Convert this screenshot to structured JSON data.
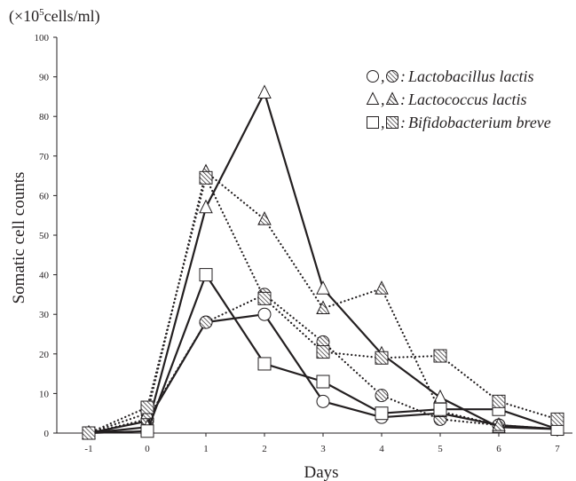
{
  "chart_data": {
    "type": "line",
    "unit_label_prefix": "(×10",
    "unit_label_exp": "5",
    "unit_label_suffix": "cells/ml)",
    "ylabel": "Somatic cell counts",
    "xlabel": "Days",
    "x": [
      -1,
      0,
      1,
      2,
      3,
      4,
      5,
      6,
      7
    ],
    "x_tick_labels": [
      "-1",
      "0",
      "1",
      "2",
      "3",
      "4",
      "5",
      "6",
      "7"
    ],
    "ylim": [
      0,
      100
    ],
    "y_ticks": [
      0,
      10,
      20,
      30,
      40,
      50,
      60,
      70,
      80,
      90,
      100
    ],
    "legend_position": "top-right",
    "legend": [
      {
        "marker": "circle",
        "name": "Lactobacillus lactis",
        "prefix": ",",
        "suffix": ":"
      },
      {
        "marker": "triangle",
        "name": "Lactococcus lactis",
        "prefix": ",",
        "suffix": ":"
      },
      {
        "marker": "square",
        "name": "Bifidobacterium breve",
        "prefix": ",",
        "suffix": ":"
      }
    ],
    "series": [
      {
        "marker": "circle",
        "style": "solid",
        "values": [
          0,
          3,
          28,
          30,
          8,
          4,
          5,
          2,
          1
        ]
      },
      {
        "marker": "circle",
        "style": "dotted",
        "values": [
          0,
          3.5,
          28,
          35,
          23,
          9.5,
          3.5,
          2,
          1
        ]
      },
      {
        "marker": "triangle",
        "style": "solid",
        "values": [
          0,
          1.5,
          57,
          86,
          36.5,
          20,
          9,
          1.5,
          1
        ]
      },
      {
        "marker": "triangle",
        "style": "dotted",
        "values": [
          0,
          5,
          66,
          54,
          31.5,
          36.5,
          5.5,
          2,
          1
        ]
      },
      {
        "marker": "square",
        "style": "solid",
        "values": [
          0,
          0.5,
          40,
          17.5,
          13,
          5,
          6,
          6,
          1
        ]
      },
      {
        "marker": "square",
        "style": "dotted",
        "values": [
          0,
          6.5,
          64.5,
          34,
          20.5,
          19,
          19.5,
          8,
          3.5
        ]
      }
    ]
  }
}
